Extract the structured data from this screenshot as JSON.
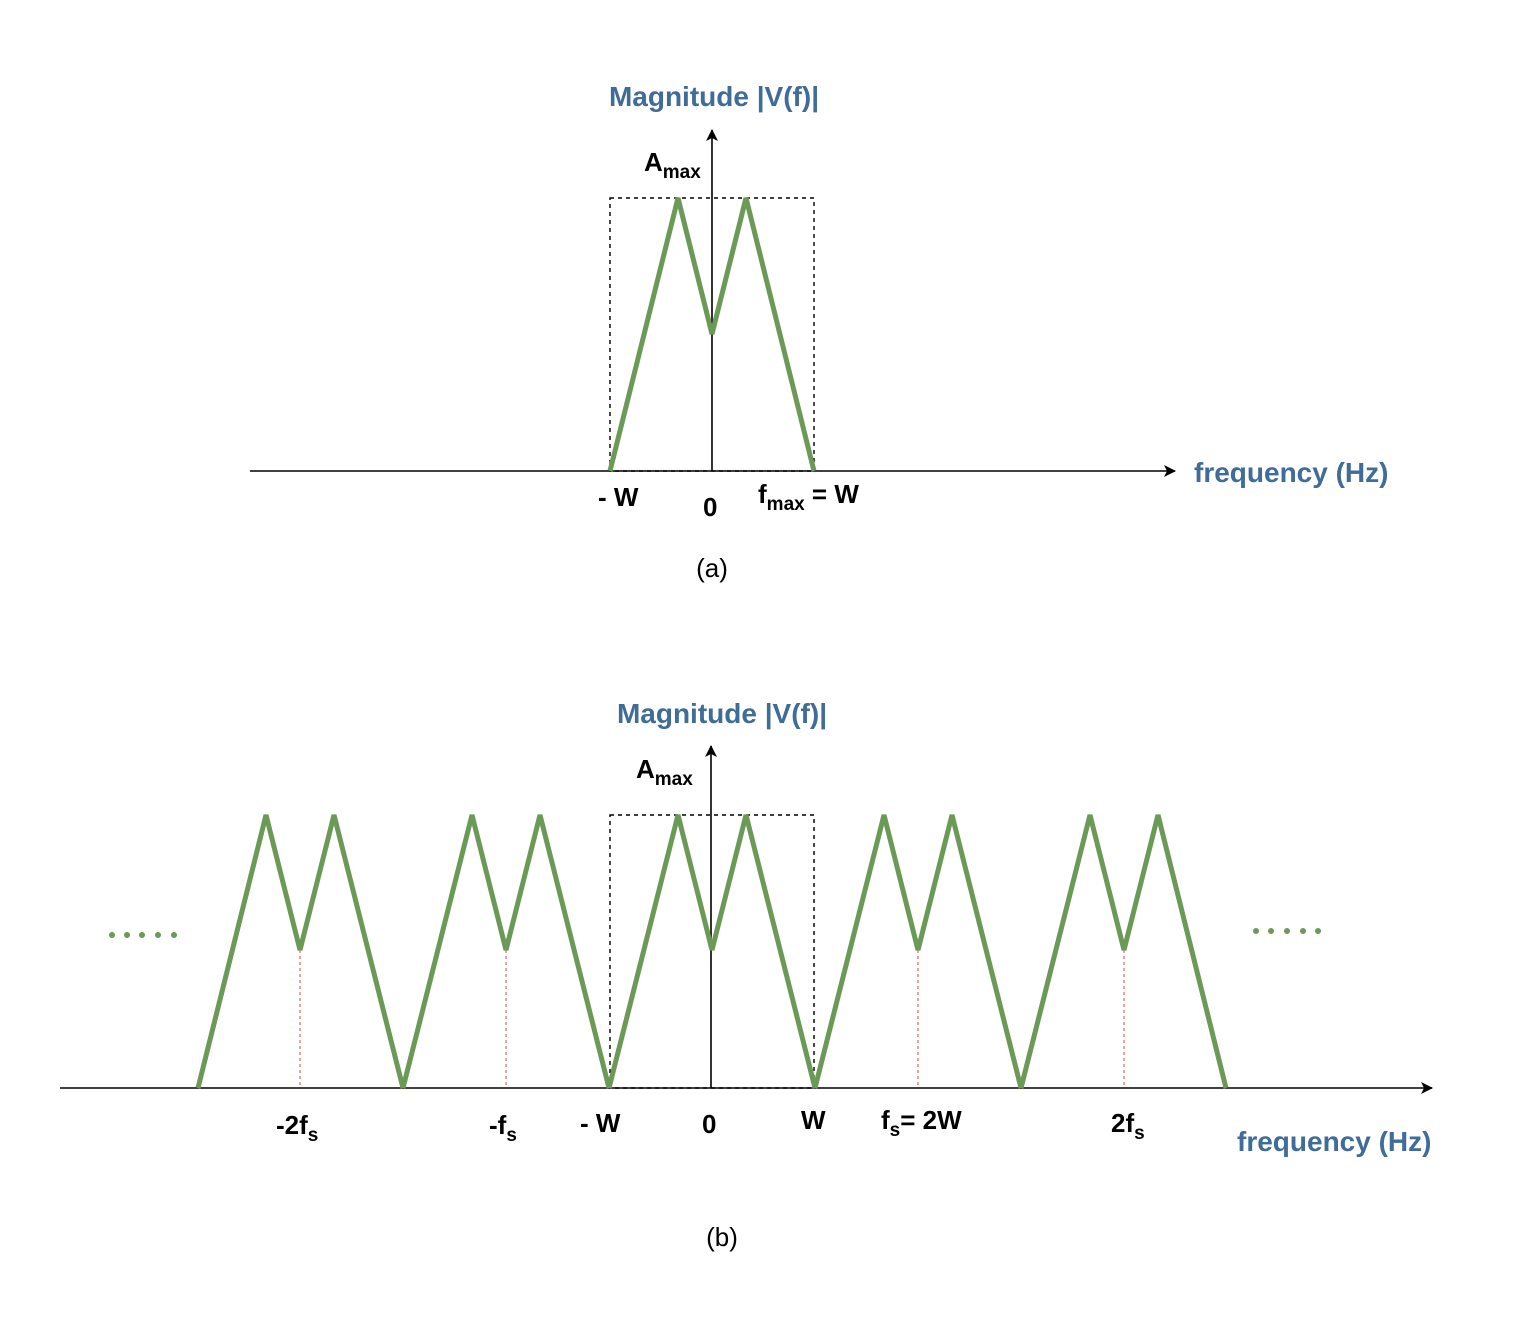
{
  "colors": {
    "spectrum": "#6a9a55",
    "axis_title": "#3f6c98",
    "axes": "#000000",
    "guide_dashed": "#000000",
    "replica_center_lines": "#e06666"
  },
  "panel_a": {
    "y_title": "Magnitude |V(f)|",
    "x_title": "frequency (Hz)",
    "amax_main": "A",
    "amax_sub": "max",
    "label_neg_w": "- W",
    "label_zero": "0",
    "label_fmax_main": "f",
    "label_fmax_sub": "max",
    "label_fmax_suffix": " = W",
    "caption": "(a)"
  },
  "panel_b": {
    "y_title": "Magnitude |V(f)|",
    "x_title": "frequency (Hz)",
    "amax_main": "A",
    "amax_sub": "max",
    "label_neg2fs_main": "-2f",
    "label_neg2fs_sub": "s",
    "label_negfs_main": "-f",
    "label_negfs_sub": "s",
    "label_neg_w": "- W",
    "label_zero": "0",
    "label_w": "W",
    "label_fs_main": "f",
    "label_fs_sub": "s",
    "label_fs_suffix": "= 2W",
    "label_2fs_main": "2f",
    "label_2fs_sub": "s",
    "ellipsis": "·····",
    "caption": "(b)"
  }
}
